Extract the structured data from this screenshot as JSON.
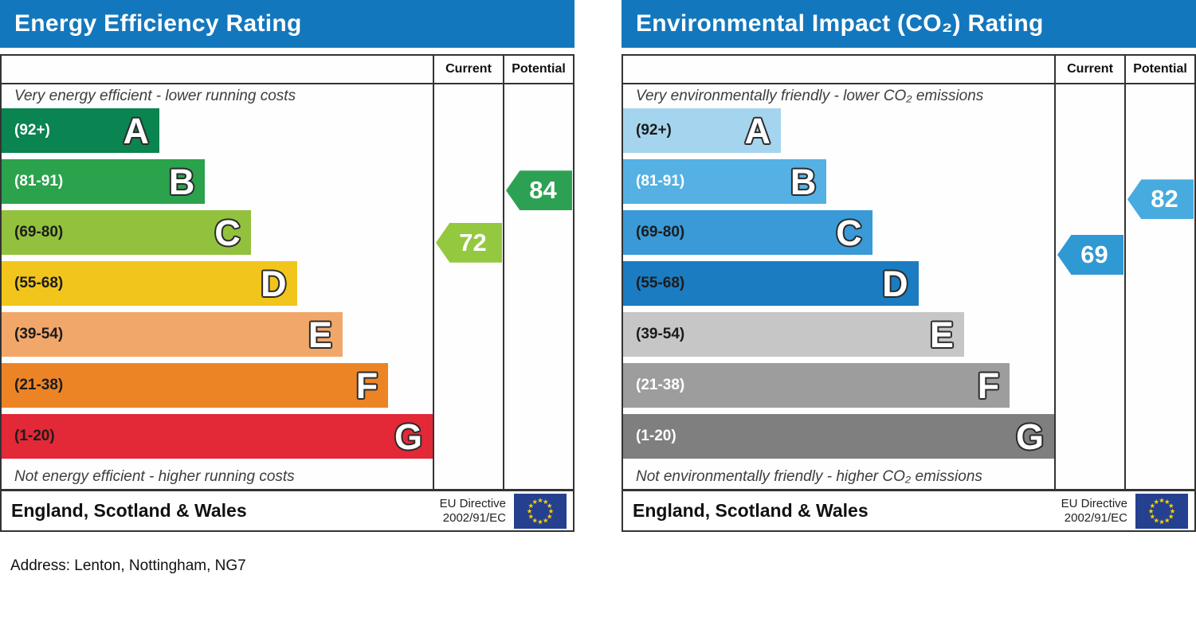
{
  "address": "Address: Lenton, Nottingham, NG7",
  "chart_data": [
    {
      "type": "bar",
      "title": "Energy Efficiency Rating",
      "header": {
        "current": "Current",
        "potential": "Potential"
      },
      "top_caption": "Very energy efficient - lower running costs",
      "bottom_caption": "Not energy efficient - higher running costs",
      "region": "England, Scotland & Wales",
      "directive": [
        "EU Directive",
        "2002/91/EC"
      ],
      "title_bar_color": "#1377bd",
      "current": {
        "value": 72,
        "band": "C",
        "color": "#94c83e"
      },
      "potential": {
        "value": 84,
        "band": "B",
        "color": "#2da153"
      },
      "bands": [
        {
          "letter": "A",
          "range": "(92+)",
          "min": 92,
          "max": 100,
          "width_pct": 36.6,
          "color": "#0a8450",
          "label_color": "#ffffff"
        },
        {
          "letter": "B",
          "range": "(81-91)",
          "min": 81,
          "max": 91,
          "width_pct": 47.2,
          "color": "#2ba24c",
          "label_color": "#ffffff"
        },
        {
          "letter": "C",
          "range": "(69-80)",
          "min": 69,
          "max": 80,
          "width_pct": 57.8,
          "color": "#92c13e",
          "label_color": "#1c1c1c"
        },
        {
          "letter": "D",
          "range": "(55-68)",
          "min": 55,
          "max": 68,
          "width_pct": 68.5,
          "color": "#f1c51b",
          "label_color": "#1c1c1c"
        },
        {
          "letter": "E",
          "range": "(39-54)",
          "min": 39,
          "max": 54,
          "width_pct": 79.1,
          "color": "#f2a76a",
          "label_color": "#1c1c1c"
        },
        {
          "letter": "F",
          "range": "(21-38)",
          "min": 21,
          "max": 38,
          "width_pct": 89.7,
          "color": "#ec8426",
          "label_color": "#1c1c1c"
        },
        {
          "letter": "G",
          "range": "(1-20)",
          "min": 1,
          "max": 20,
          "width_pct": 100,
          "color": "#e32837",
          "label_color": "#1c1c1c"
        }
      ]
    },
    {
      "type": "bar",
      "title": "Environmental Impact (CO₂) Rating",
      "header": {
        "current": "Current",
        "potential": "Potential"
      },
      "top_caption": "Very environmentally friendly - lower CO₂ emissions",
      "bottom_caption": "Not environmentally friendly - higher CO₂ emissions",
      "region": "England, Scotland & Wales",
      "directive": [
        "EU Directive",
        "2002/91/EC"
      ],
      "title_bar_color": "#1377bd",
      "current": {
        "value": 69,
        "band": "C",
        "color": "#2f99d3"
      },
      "potential": {
        "value": 82,
        "band": "B",
        "color": "#47abdf"
      },
      "bands": [
        {
          "letter": "A",
          "range": "(92+)",
          "min": 92,
          "max": 100,
          "width_pct": 36.6,
          "color": "#a5d5ee",
          "label_color": "#1c1c1c"
        },
        {
          "letter": "B",
          "range": "(81-91)",
          "min": 81,
          "max": 91,
          "width_pct": 47.2,
          "color": "#55b1e4",
          "label_color": "#ffffff"
        },
        {
          "letter": "C",
          "range": "(69-80)",
          "min": 69,
          "max": 80,
          "width_pct": 57.8,
          "color": "#399ad7",
          "label_color": "#1c1c1c"
        },
        {
          "letter": "D",
          "range": "(55-68)",
          "min": 55,
          "max": 68,
          "width_pct": 68.5,
          "color": "#1b7cc2",
          "label_color": "#1c1c1c"
        },
        {
          "letter": "E",
          "range": "(39-54)",
          "min": 39,
          "max": 54,
          "width_pct": 79.1,
          "color": "#c6c6c6",
          "label_color": "#1c1c1c"
        },
        {
          "letter": "F",
          "range": "(21-38)",
          "min": 21,
          "max": 38,
          "width_pct": 89.7,
          "color": "#9d9d9d",
          "label_color": "#ffffff"
        },
        {
          "letter": "G",
          "range": "(1-20)",
          "min": 1,
          "max": 20,
          "width_pct": 100,
          "color": "#7f7f7f",
          "label_color": "#ffffff"
        }
      ]
    }
  ],
  "flag": {
    "background": "#24408e",
    "star_color": "#fccf00"
  }
}
